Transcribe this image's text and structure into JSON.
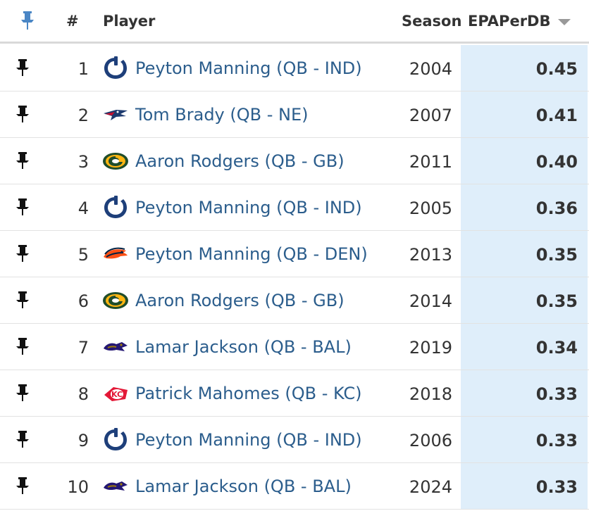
{
  "header": {
    "rank_label": "#",
    "player_label": "Player",
    "season_label": "Season",
    "metric_label": "EPAPerDB",
    "sort_direction": "descending"
  },
  "colors": {
    "link": "#2b5d8c",
    "highlight_column": "#dfeefa"
  },
  "rows": [
    {
      "rank": "1",
      "player": "Peyton Manning (QB - IND)",
      "team_logo": "colts-logo-icon",
      "season": "2004",
      "epa": "0.45"
    },
    {
      "rank": "2",
      "player": "Tom Brady (QB - NE)",
      "team_logo": "patriots-logo-icon",
      "season": "2007",
      "epa": "0.41"
    },
    {
      "rank": "3",
      "player": "Aaron Rodgers (QB - GB)",
      "team_logo": "packers-logo-icon",
      "season": "2011",
      "epa": "0.40"
    },
    {
      "rank": "4",
      "player": "Peyton Manning (QB - IND)",
      "team_logo": "colts-logo-icon",
      "season": "2005",
      "epa": "0.36"
    },
    {
      "rank": "5",
      "player": "Peyton Manning (QB - DEN)",
      "team_logo": "broncos-logo-icon",
      "season": "2013",
      "epa": "0.35"
    },
    {
      "rank": "6",
      "player": "Aaron Rodgers (QB - GB)",
      "team_logo": "packers-logo-icon",
      "season": "2014",
      "epa": "0.35"
    },
    {
      "rank": "7",
      "player": "Lamar Jackson (QB - BAL)",
      "team_logo": "ravens-logo-icon",
      "season": "2019",
      "epa": "0.34"
    },
    {
      "rank": "8",
      "player": "Patrick Mahomes (QB - KC)",
      "team_logo": "chiefs-logo-icon",
      "season": "2018",
      "epa": "0.33"
    },
    {
      "rank": "9",
      "player": "Peyton Manning (QB - IND)",
      "team_logo": "colts-logo-icon",
      "season": "2006",
      "epa": "0.33"
    },
    {
      "rank": "10",
      "player": "Lamar Jackson (QB - BAL)",
      "team_logo": "ravens-logo-icon",
      "season": "2024",
      "epa": "0.33"
    }
  ]
}
